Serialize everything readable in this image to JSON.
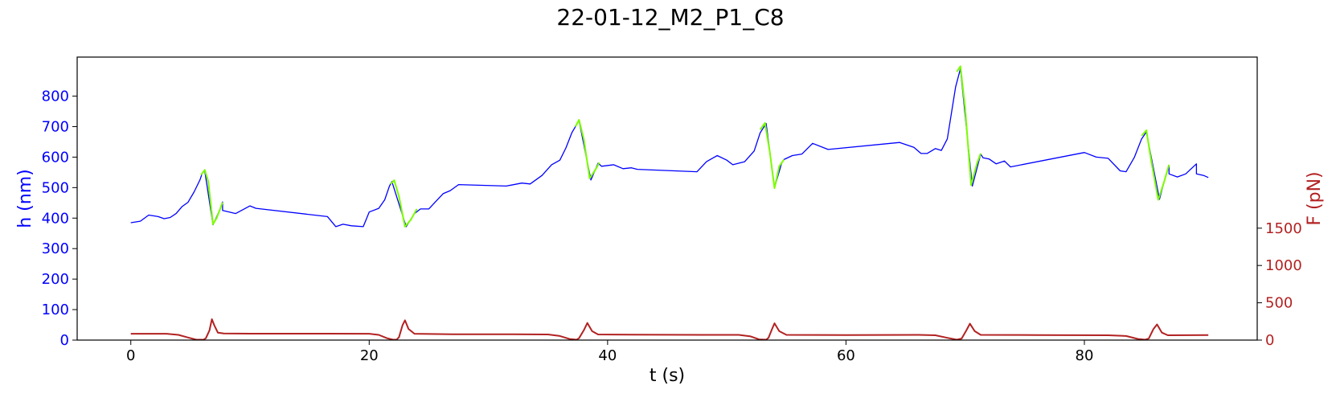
{
  "chart_data": {
    "type": "line",
    "title": "22-01-12_M2_P1_C8",
    "xlabel": "t (s)",
    "ylabel_left": "h (nm)",
    "ylabel_right": "F (pN)",
    "xlim": [
      -4.5,
      94.5
    ],
    "ylim_left": [
      0,
      928
    ],
    "ylim_right": [
      0,
      3793
    ],
    "x_ticks": [
      0,
      20,
      40,
      60,
      80
    ],
    "y_left_ticks": [
      0,
      100,
      200,
      300,
      400,
      500,
      600,
      700,
      800
    ],
    "y_right_ticks": [
      0,
      500,
      1000,
      1500
    ],
    "grid": false,
    "colors": {
      "height_series": "#0000ff",
      "height_highlight": "#7cfc00",
      "force_series": "#b22222",
      "left_axis": "#0000ff",
      "right_axis": "#b22222"
    },
    "series": [
      {
        "axis": "left",
        "color": "#0000ff",
        "points": [
          [
            0,
            385
          ],
          [
            0.8,
            390
          ],
          [
            1.5,
            410
          ],
          [
            2.3,
            405
          ],
          [
            2.8,
            398
          ],
          [
            3.3,
            402
          ],
          [
            3.8,
            415
          ],
          [
            4.3,
            438
          ],
          [
            4.8,
            452
          ],
          [
            5.3,
            485
          ],
          [
            5.8,
            525
          ],
          [
            6.0,
            548
          ],
          [
            6.2,
            555
          ],
          [
            6.9,
            378
          ],
          [
            7.5,
            430
          ],
          [
            7.7,
            453
          ],
          [
            7.7,
            425
          ],
          [
            8.8,
            415
          ],
          [
            10.0,
            440
          ],
          [
            10.5,
            432
          ],
          [
            16.5,
            405
          ],
          [
            17.2,
            372
          ],
          [
            17.8,
            380
          ],
          [
            18.5,
            375
          ],
          [
            19.5,
            372
          ],
          [
            20.0,
            420
          ],
          [
            20.8,
            432
          ],
          [
            21.3,
            460
          ],
          [
            21.7,
            505
          ],
          [
            21.9,
            520
          ],
          [
            23.1,
            372
          ],
          [
            23.8,
            415
          ],
          [
            24.3,
            430
          ],
          [
            25.0,
            430
          ],
          [
            26.2,
            480
          ],
          [
            26.8,
            490
          ],
          [
            27.5,
            510
          ],
          [
            31.5,
            505
          ],
          [
            32.8,
            515
          ],
          [
            33.5,
            512
          ],
          [
            34.5,
            540
          ],
          [
            35.3,
            575
          ],
          [
            36.0,
            590
          ],
          [
            36.5,
            630
          ],
          [
            37.0,
            680
          ],
          [
            37.6,
            720
          ],
          [
            38.6,
            525
          ],
          [
            39.2,
            580
          ],
          [
            39.5,
            570
          ],
          [
            40.5,
            575
          ],
          [
            41.3,
            562
          ],
          [
            42.0,
            565
          ],
          [
            42.5,
            560
          ],
          [
            47.5,
            552
          ],
          [
            48.3,
            585
          ],
          [
            49.2,
            605
          ],
          [
            50.0,
            590
          ],
          [
            50.5,
            575
          ],
          [
            51.5,
            585
          ],
          [
            52.3,
            620
          ],
          [
            52.8,
            680
          ],
          [
            53.3,
            710
          ],
          [
            54.0,
            500
          ],
          [
            54.6,
            580
          ],
          [
            54.8,
            592
          ],
          [
            55.5,
            605
          ],
          [
            56.3,
            610
          ],
          [
            57.2,
            645
          ],
          [
            58.5,
            625
          ],
          [
            64.5,
            648
          ],
          [
            65.7,
            632
          ],
          [
            66.3,
            612
          ],
          [
            66.8,
            612
          ],
          [
            67.5,
            628
          ],
          [
            68.0,
            622
          ],
          [
            68.5,
            660
          ],
          [
            69.2,
            830
          ],
          [
            69.6,
            890
          ],
          [
            70.6,
            505
          ],
          [
            71.3,
            610
          ],
          [
            71.5,
            598
          ],
          [
            72.0,
            594
          ],
          [
            72.6,
            578
          ],
          [
            73.3,
            587
          ],
          [
            73.8,
            568
          ],
          [
            80.0,
            615
          ],
          [
            81.0,
            600
          ],
          [
            82.0,
            596
          ],
          [
            83.0,
            555
          ],
          [
            83.5,
            552
          ],
          [
            84.2,
            600
          ],
          [
            84.8,
            660
          ],
          [
            85.2,
            682
          ],
          [
            86.3,
            462
          ],
          [
            86.8,
            535
          ],
          [
            87.1,
            572
          ],
          [
            87.1,
            545
          ],
          [
            87.8,
            535
          ],
          [
            88.5,
            545
          ],
          [
            89.4,
            578
          ],
          [
            89.4,
            545
          ],
          [
            90.0,
            540
          ],
          [
            90.4,
            533
          ]
        ]
      },
      {
        "axis": "left",
        "color": "#7cfc00",
        "segments": [
          [
            [
              5.9,
              542
            ],
            [
              6.2,
              558
            ],
            [
              6.5,
              520
            ],
            [
              6.9,
              380
            ],
            [
              7.2,
              400
            ],
            [
              7.5,
              430
            ],
            [
              7.7,
              452
            ]
          ],
          [
            [
              21.8,
              512
            ],
            [
              22.1,
              524
            ],
            [
              22.5,
              470
            ],
            [
              23.0,
              372
            ],
            [
              23.5,
              395
            ],
            [
              24.0,
              430
            ]
          ],
          [
            [
              37.3,
              700
            ],
            [
              37.6,
              722
            ],
            [
              38.0,
              660
            ],
            [
              38.5,
              530
            ],
            [
              39.0,
              560
            ],
            [
              39.3,
              582
            ]
          ],
          [
            [
              52.8,
              690
            ],
            [
              53.2,
              712
            ],
            [
              53.6,
              620
            ],
            [
              54.0,
              498
            ],
            [
              54.4,
              570
            ],
            [
              54.8,
              592
            ]
          ],
          [
            [
              69.3,
              880
            ],
            [
              69.6,
              898
            ],
            [
              70.0,
              760
            ],
            [
              70.5,
              508
            ],
            [
              71.0,
              580
            ],
            [
              71.3,
              612
            ]
          ],
          [
            [
              84.8,
              670
            ],
            [
              85.2,
              688
            ],
            [
              85.6,
              590
            ],
            [
              86.2,
              460
            ],
            [
              86.7,
              520
            ],
            [
              87.1,
              575
            ]
          ]
        ]
      },
      {
        "axis": "right",
        "color": "#b22222",
        "points": [
          [
            0,
            85
          ],
          [
            3.0,
            85
          ],
          [
            4.0,
            70
          ],
          [
            4.8,
            35
          ],
          [
            5.5,
            5
          ],
          [
            6.1,
            5
          ],
          [
            6.3,
            25
          ],
          [
            6.6,
            130
          ],
          [
            6.8,
            280
          ],
          [
            7.0,
            200
          ],
          [
            7.3,
            100
          ],
          [
            7.8,
            88
          ],
          [
            10,
            86
          ],
          [
            16.5,
            86
          ],
          [
            20.0,
            85
          ],
          [
            20.8,
            70
          ],
          [
            21.5,
            25
          ],
          [
            22.0,
            5
          ],
          [
            22.3,
            5
          ],
          [
            22.5,
            40
          ],
          [
            22.8,
            200
          ],
          [
            23.0,
            265
          ],
          [
            23.3,
            150
          ],
          [
            23.8,
            85
          ],
          [
            27,
            78
          ],
          [
            32,
            78
          ],
          [
            35.0,
            75
          ],
          [
            36.0,
            55
          ],
          [
            36.8,
            15
          ],
          [
            37.4,
            5
          ],
          [
            37.6,
            25
          ],
          [
            38.0,
            130
          ],
          [
            38.3,
            230
          ],
          [
            38.7,
            120
          ],
          [
            39.2,
            75
          ],
          [
            42,
            72
          ],
          [
            48,
            70
          ],
          [
            51.0,
            70
          ],
          [
            52.0,
            50
          ],
          [
            52.7,
            10
          ],
          [
            53.3,
            5
          ],
          [
            53.5,
            30
          ],
          [
            53.8,
            150
          ],
          [
            54.0,
            225
          ],
          [
            54.4,
            120
          ],
          [
            55.0,
            70
          ],
          [
            60,
            68
          ],
          [
            66.0,
            70
          ],
          [
            67.5,
            65
          ],
          [
            68.5,
            30
          ],
          [
            69.3,
            5
          ],
          [
            69.7,
            20
          ],
          [
            70.1,
            130
          ],
          [
            70.4,
            220
          ],
          [
            70.8,
            120
          ],
          [
            71.3,
            70
          ],
          [
            76,
            68
          ],
          [
            82.0,
            65
          ],
          [
            83.5,
            55
          ],
          [
            84.5,
            15
          ],
          [
            85.1,
            5
          ],
          [
            85.4,
            20
          ],
          [
            85.8,
            150
          ],
          [
            86.1,
            210
          ],
          [
            86.5,
            100
          ],
          [
            87.0,
            65
          ],
          [
            90.4,
            68
          ]
        ]
      }
    ]
  }
}
